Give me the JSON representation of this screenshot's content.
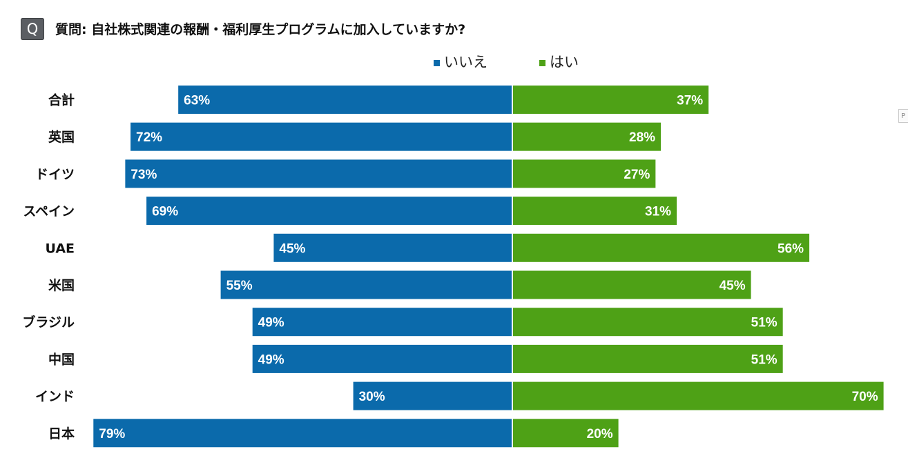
{
  "header": {
    "badge": "Q",
    "question": "質問: 自社株式関連の報酬・福利厚生プログラムに加入していますか?"
  },
  "legend": {
    "no_label": "いいえ",
    "yes_label": "はい"
  },
  "colors": {
    "no": "#0b6aab",
    "yes": "#4ea116",
    "bar_text": "#ffffff",
    "category_text": "#111111"
  },
  "edge_label": "P",
  "chart_data": {
    "type": "bar",
    "orientation": "horizontal-diverging",
    "title": "質問: 自社株式関連の報酬・福利厚生プログラムに加入していますか?",
    "categories": [
      "合計",
      "英国",
      "ドイツ",
      "スペイン",
      "UAE",
      "米国",
      "ブラジル",
      "中国",
      "インド",
      "日本"
    ],
    "series": [
      {
        "name": "いいえ",
        "values": [
          63,
          72,
          73,
          69,
          45,
          55,
          49,
          49,
          30,
          79
        ],
        "labels": [
          "63%",
          "72%",
          "73%",
          "69%",
          "45%",
          "55%",
          "49%",
          "49%",
          "30%",
          "79%"
        ]
      },
      {
        "name": "はい",
        "values": [
          37,
          28,
          27,
          31,
          56,
          45,
          51,
          51,
          70,
          20
        ],
        "labels": [
          "37%",
          "28%",
          "27%",
          "31%",
          "56%",
          "45%",
          "51%",
          "51%",
          "70%",
          "20%"
        ]
      }
    ],
    "xlim": [
      -80,
      80
    ],
    "legend_position": "top-center"
  }
}
